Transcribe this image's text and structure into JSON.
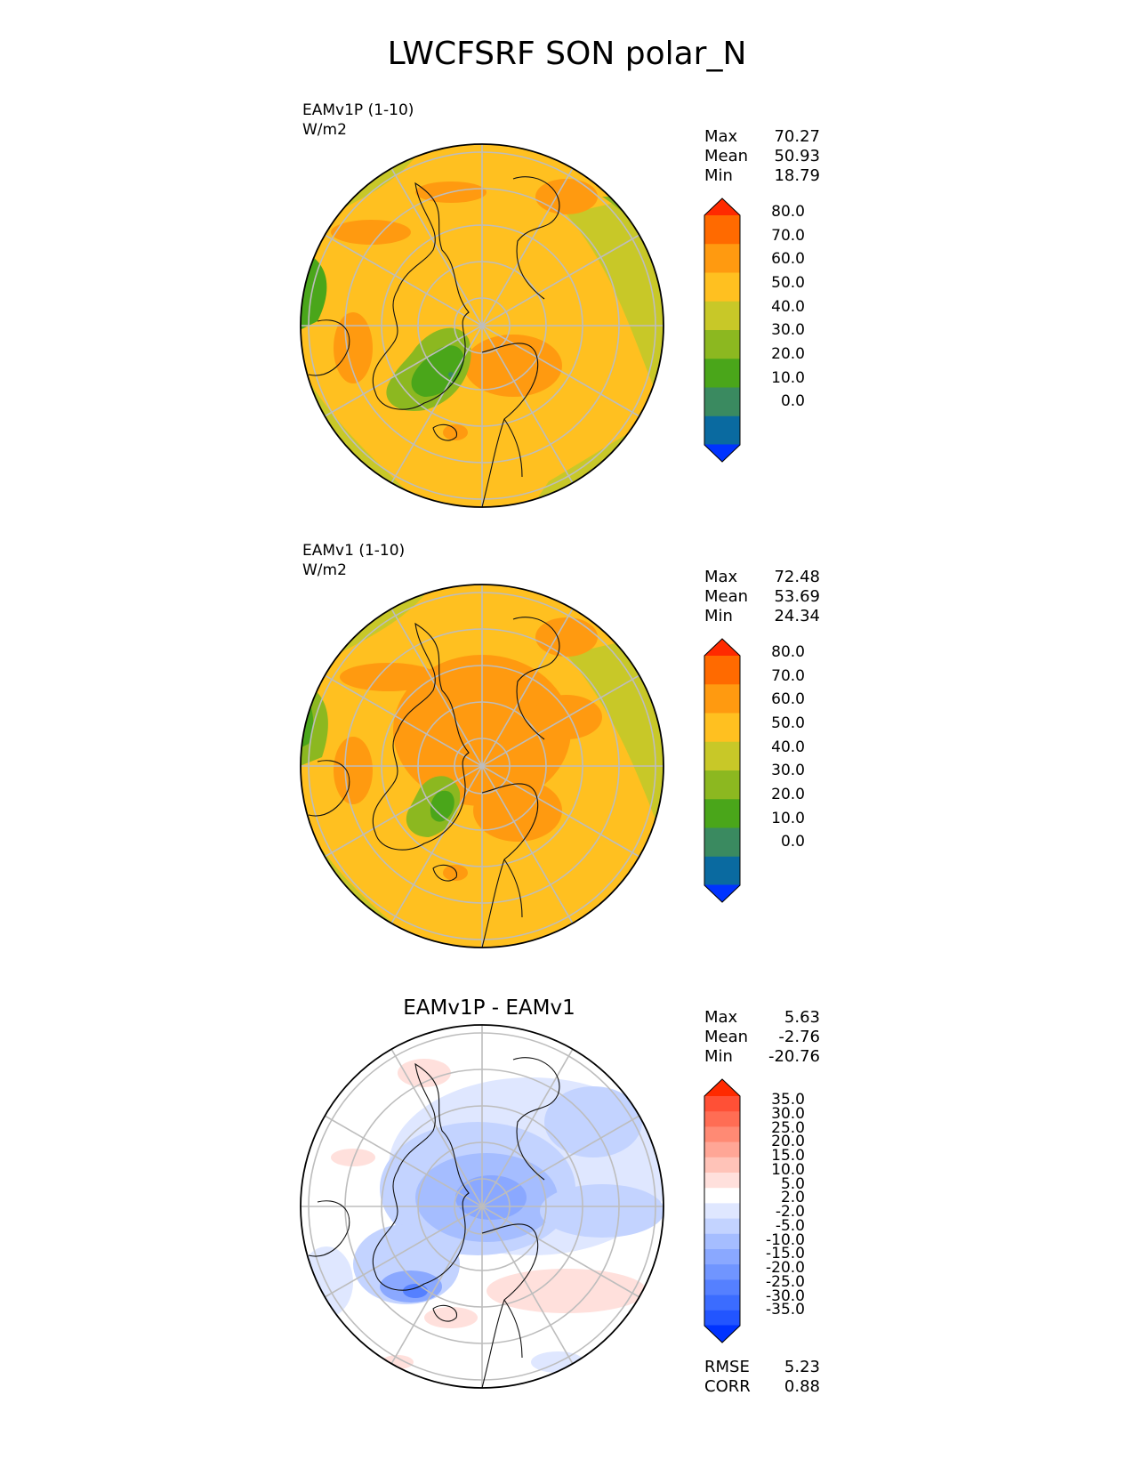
{
  "title": "LWCFSRF SON polar_N",
  "panels": [
    {
      "name": "EAMv1P (1-10)",
      "units": "W/m2",
      "stats": {
        "max_label": "Max",
        "max": "70.27",
        "mean_label": "Mean",
        "mean": "50.93",
        "min_label": "Min",
        "min": "18.79"
      },
      "colorbar_ticks": [
        "80.0",
        "70.0",
        "60.0",
        "50.0",
        "40.0",
        "30.0",
        "20.0",
        "10.0",
        "0.0"
      ]
    },
    {
      "name": "EAMv1 (1-10)",
      "units": "W/m2",
      "stats": {
        "max_label": "Max",
        "max": "72.48",
        "mean_label": "Mean",
        "mean": "53.69",
        "min_label": "Min",
        "min": "24.34"
      },
      "colorbar_ticks": [
        "80.0",
        "70.0",
        "60.0",
        "50.0",
        "40.0",
        "30.0",
        "20.0",
        "10.0",
        "0.0"
      ]
    },
    {
      "title": "EAMv1P - EAMv1",
      "stats": {
        "max_label": "Max",
        "max": "5.63",
        "mean_label": "Mean",
        "mean": "-2.76",
        "min_label": "Min",
        "min": "-20.76"
      },
      "colorbar_ticks": [
        "35.0",
        "30.0",
        "25.0",
        "20.0",
        "15.0",
        "10.0",
        "5.0",
        "2.0",
        "-2.0",
        "-5.0",
        "-10.0",
        "-15.0",
        "-20.0",
        "-25.0",
        "-30.0",
        "-35.0"
      ],
      "extra": {
        "rmse_label": "RMSE",
        "rmse": "5.23",
        "corr_label": "CORR",
        "corr": "0.88"
      }
    }
  ],
  "colors": {
    "seq": [
      "#0033ff",
      "#0a6aa0",
      "#3a8a60",
      "#4aa61a",
      "#8cb820",
      "#c8c828",
      "#ffc020",
      "#ff9a10",
      "#ff6a00",
      "#ff2a00"
    ],
    "div": [
      "#0033ff",
      "#2255ff",
      "#3b6cff",
      "#5580ff",
      "#7095ff",
      "#8aa8ff",
      "#a5bdff",
      "#c3d3ff",
      "#dfe7ff",
      "#ffffff",
      "#ffe0dc",
      "#ffc3b8",
      "#ffa696",
      "#ff8a74",
      "#ff6d54",
      "#ff5036",
      "#ff2a00"
    ]
  }
}
